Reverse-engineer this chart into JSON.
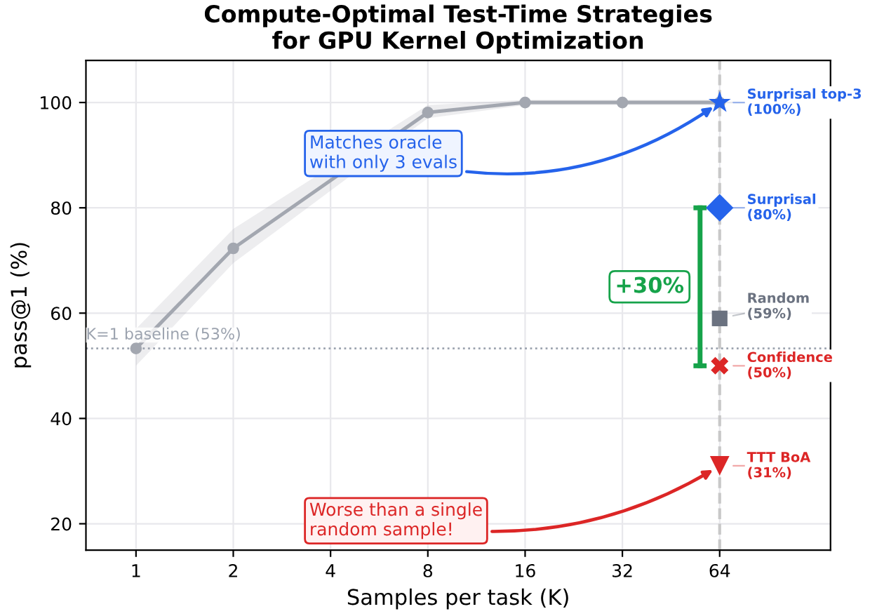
{
  "chart_data": {
    "type": "line",
    "title": "Compute-Optimal Test-Time Strategies\nfor GPU Kernel Optimization",
    "xlabel": "Samples per task (K)",
    "ylabel": "pass@1 (%)",
    "log": "x",
    "xlim": [
      0.7,
      141
    ],
    "xticks": [
      1,
      2,
      4,
      8,
      16,
      32,
      64
    ],
    "ylim": [
      15,
      108
    ],
    "yticks": [
      20,
      40,
      60,
      80,
      100
    ],
    "grid": true,
    "legend": false,
    "series": [
      {
        "color": "#a3a7b0",
        "marker": "circle",
        "x": [
          1,
          2,
          4,
          8,
          16,
          32,
          64
        ],
        "values": [
          53.3,
          72.3,
          null,
          98.1,
          100,
          100,
          100
        ],
        "lower": [
          50,
          69.5,
          null,
          97,
          99.5,
          99.5,
          99.5
        ],
        "upper": [
          57,
          76,
          null,
          99.5,
          100.5,
          100.5,
          100.5
        ]
      },
      {
        "type": "scatter",
        "name": "Surprisal top-3",
        "color": "#2563eb",
        "marker": "star",
        "x": [
          64
        ],
        "values": [
          100
        ],
        "value_labels": [
          "(100%)"
        ]
      },
      {
        "type": "scatter",
        "name": "Surprisal",
        "color": "#2563eb",
        "marker": "diamond",
        "x": [
          64
        ],
        "values": [
          80
        ],
        "value_labels": [
          "(80%)"
        ]
      },
      {
        "type": "scatter",
        "name": "Random",
        "color": "#6b7280",
        "marker": "square",
        "x": [
          64
        ],
        "values": [
          59
        ],
        "value_labels": [
          "(59%)"
        ]
      },
      {
        "type": "scatter",
        "name": "Confidence",
        "color": "#dc2626",
        "marker": "cross",
        "x": [
          64
        ],
        "values": [
          50
        ],
        "value_labels": [
          "(50%)"
        ]
      },
      {
        "type": "scatter",
        "name": "TTT BoA",
        "color": "#dc2626",
        "marker": "triangle",
        "x": [
          64
        ],
        "values": [
          31
        ],
        "value_labels": [
          "(31%)"
        ]
      }
    ],
    "ref_lines": [
      {
        "axis": "y",
        "value": 53.3,
        "label": "K=1 baseline (53%)",
        "color": "#9ca3af",
        "line_style": "dotted"
      },
      {
        "axis": "x",
        "value": 64,
        "label": null,
        "color": "#c8c8c8",
        "line_style": "dashed"
      }
    ],
    "annotations": [
      {
        "text": "Matches oracle\nwith only 3 evals",
        "x": 64,
        "y": 100
      },
      {
        "text": "Worse than a single\nrandom sample!",
        "x": 64,
        "y": 31
      },
      "+30%"
    ]
  }
}
